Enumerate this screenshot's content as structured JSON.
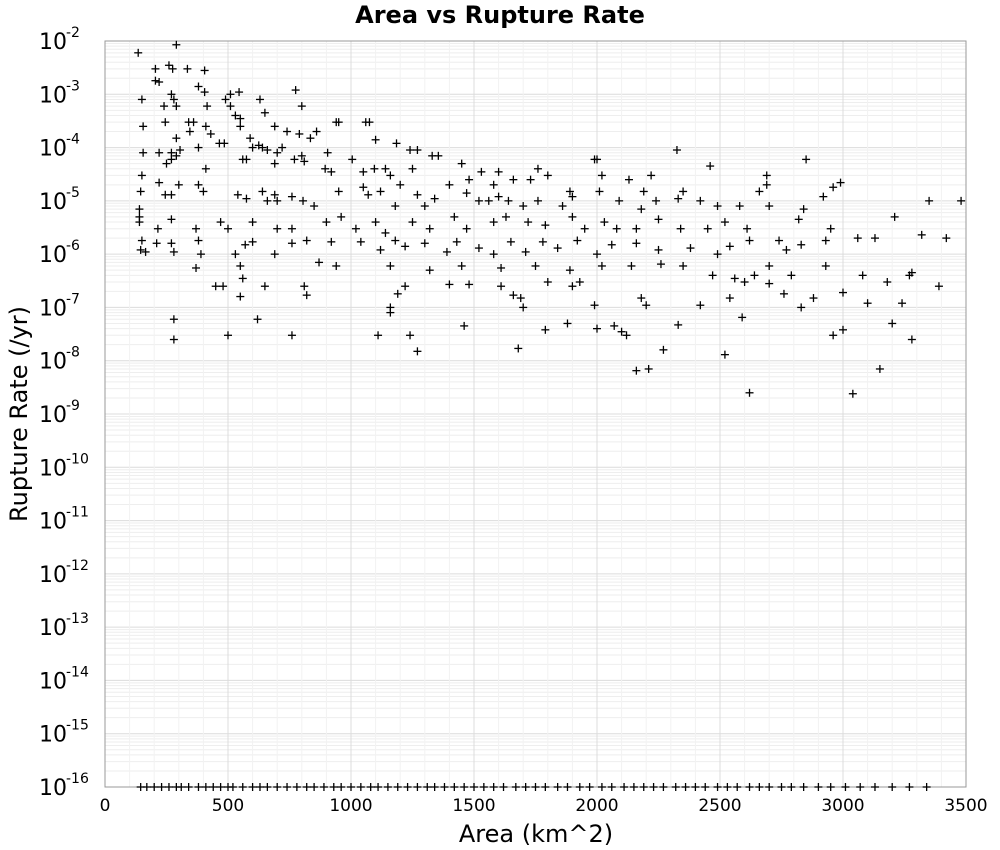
{
  "chart_data": {
    "type": "scatter",
    "title": "Area vs Rupture Rate",
    "xlabel": "Area (km^2)",
    "ylabel": "Rupture Rate (/yr)",
    "xlim": [
      0,
      3500
    ],
    "ylim": [
      1e-16,
      0.01
    ],
    "y_scale": "log",
    "grid": true,
    "marker": "plus",
    "marker_color": "#000000",
    "x_ticks": [
      0,
      500,
      1000,
      1500,
      2000,
      2500,
      3000,
      3500
    ],
    "y_ticks": [
      {
        "base": "10",
        "exp": "-2"
      },
      {
        "base": "10",
        "exp": "-3"
      },
      {
        "base": "10",
        "exp": "-4"
      },
      {
        "base": "10",
        "exp": "-5"
      },
      {
        "base": "10",
        "exp": "-6"
      },
      {
        "base": "10",
        "exp": "-7"
      },
      {
        "base": "10",
        "exp": "-8"
      },
      {
        "base": "10",
        "exp": "-9"
      },
      {
        "base": "10",
        "exp": "-10"
      },
      {
        "base": "10",
        "exp": "-11"
      },
      {
        "base": "10",
        "exp": "-12"
      },
      {
        "base": "10",
        "exp": "-13"
      },
      {
        "base": "10",
        "exp": "-14"
      },
      {
        "base": "10",
        "exp": "-15"
      },
      {
        "base": "10",
        "exp": "-16"
      }
    ],
    "points": [
      [
        135,
        0.006
      ],
      [
        290,
        0.0085
      ],
      [
        260,
        0.0035
      ],
      [
        275,
        0.003
      ],
      [
        205,
        0.003
      ],
      [
        335,
        0.003
      ],
      [
        405,
        0.0028
      ],
      [
        205,
        0.0018
      ],
      [
        220,
        0.0017
      ],
      [
        150,
        0.0008
      ],
      [
        270,
        0.001
      ],
      [
        280,
        0.0008
      ],
      [
        290,
        0.0006
      ],
      [
        240,
        0.0006
      ],
      [
        380,
        0.0014
      ],
      [
        405,
        0.0011
      ],
      [
        510,
        0.001
      ],
      [
        545,
        0.0011
      ],
      [
        490,
        0.0008
      ],
      [
        510,
        0.0006
      ],
      [
        415,
        0.0006
      ],
      [
        630,
        0.0008
      ],
      [
        775,
        0.0012
      ],
      [
        800,
        0.0006
      ],
      [
        530,
        0.0004
      ],
      [
        650,
        0.00045
      ],
      [
        410,
        0.00025
      ],
      [
        155,
        0.00025
      ],
      [
        245,
        0.0003
      ],
      [
        340,
        0.0003
      ],
      [
        360,
        0.0003
      ],
      [
        345,
        0.0002
      ],
      [
        430,
        0.00018
      ],
      [
        465,
        0.00012
      ],
      [
        485,
        0.00012
      ],
      [
        550,
        0.00025
      ],
      [
        550,
        0.00035
      ],
      [
        690,
        0.00025
      ],
      [
        740,
        0.0002
      ],
      [
        790,
        0.00018
      ],
      [
        835,
        0.00015
      ],
      [
        860,
        0.0002
      ],
      [
        940,
        0.0003
      ],
      [
        950,
        0.0003
      ],
      [
        1075,
        0.0003
      ],
      [
        1060,
        0.0003
      ],
      [
        1100,
        0.00014
      ],
      [
        590,
        0.00015
      ],
      [
        600,
        0.0001
      ],
      [
        625,
        0.00011
      ],
      [
        640,
        0.0001
      ],
      [
        155,
        8e-05
      ],
      [
        220,
        8e-05
      ],
      [
        270,
        8e-05
      ],
      [
        290,
        0.00015
      ],
      [
        305,
        9e-05
      ],
      [
        380,
        0.0001
      ],
      [
        660,
        9e-05
      ],
      [
        700,
        8e-05
      ],
      [
        720,
        0.0001
      ],
      [
        800,
        7e-05
      ],
      [
        905,
        8e-05
      ],
      [
        1005,
        6e-05
      ],
      [
        1185,
        0.00012
      ],
      [
        1240,
        9e-05
      ],
      [
        1270,
        9e-05
      ],
      [
        1330,
        7e-05
      ],
      [
        1355,
        7e-05
      ],
      [
        1450,
        5e-05
      ],
      [
        1600,
        3.5e-05
      ],
      [
        2000,
        6e-05
      ],
      [
        2325,
        9e-05
      ],
      [
        2460,
        4.5e-05
      ],
      [
        2850,
        6e-05
      ],
      [
        250,
        5e-05
      ],
      [
        270,
        6e-05
      ],
      [
        290,
        7e-05
      ],
      [
        410,
        4e-05
      ],
      [
        560,
        6e-05
      ],
      [
        575,
        6e-05
      ],
      [
        690,
        5e-05
      ],
      [
        770,
        6e-05
      ],
      [
        810,
        5.5e-05
      ],
      [
        895,
        4e-05
      ],
      [
        920,
        3.5e-05
      ],
      [
        1050,
        3.5e-05
      ],
      [
        1095,
        4e-05
      ],
      [
        1140,
        4e-05
      ],
      [
        1160,
        3e-05
      ],
      [
        1200,
        2e-05
      ],
      [
        1250,
        4e-05
      ],
      [
        1400,
        2e-05
      ],
      [
        1480,
        2.5e-05
      ],
      [
        1530,
        3.5e-05
      ],
      [
        1580,
        2e-05
      ],
      [
        1660,
        2.5e-05
      ],
      [
        1730,
        2.5e-05
      ],
      [
        1760,
        4e-05
      ],
      [
        1800,
        3e-05
      ],
      [
        1890,
        1.5e-05
      ],
      [
        1990,
        6e-05
      ],
      [
        2020,
        3e-05
      ],
      [
        2130,
        2.5e-05
      ],
      [
        2190,
        1.5e-05
      ],
      [
        2220,
        3e-05
      ],
      [
        2350,
        1.5e-05
      ],
      [
        2660,
        1.5e-05
      ],
      [
        2690,
        3e-05
      ],
      [
        2690,
        2e-05
      ],
      [
        2990,
        2.2e-05
      ],
      [
        2960,
        1.8e-05
      ],
      [
        3480,
        1e-05
      ],
      [
        3350,
        1e-05
      ],
      [
        150,
        3e-05
      ],
      [
        145,
        1.5e-05
      ],
      [
        140,
        7e-06
      ],
      [
        140,
        5e-06
      ],
      [
        220,
        2.2e-05
      ],
      [
        245,
        1.3e-05
      ],
      [
        270,
        1.3e-05
      ],
      [
        300,
        2e-05
      ],
      [
        400,
        1.5e-05
      ],
      [
        380,
        2e-05
      ],
      [
        540,
        1.3e-05
      ],
      [
        640,
        1.5e-05
      ],
      [
        575,
        1.1e-05
      ],
      [
        660,
        1e-05
      ],
      [
        690,
        1.3e-05
      ],
      [
        700,
        1e-05
      ],
      [
        760,
        1.2e-05
      ],
      [
        805,
        1e-05
      ],
      [
        850,
        8e-06
      ],
      [
        950,
        1.5e-05
      ],
      [
        1050,
        1.8e-05
      ],
      [
        1070,
        1.3e-05
      ],
      [
        1120,
        1.5e-05
      ],
      [
        1180,
        8e-06
      ],
      [
        1270,
        1.3e-05
      ],
      [
        1300,
        8e-06
      ],
      [
        1340,
        1.1e-05
      ],
      [
        1470,
        1.4e-05
      ],
      [
        1520,
        1e-05
      ],
      [
        1560,
        1e-05
      ],
      [
        1600,
        1.2e-05
      ],
      [
        1640,
        1e-05
      ],
      [
        1700,
        8e-06
      ],
      [
        1760,
        1e-05
      ],
      [
        1860,
        8e-06
      ],
      [
        1900,
        1.2e-05
      ],
      [
        2010,
        1.5e-05
      ],
      [
        2090,
        1e-05
      ],
      [
        2180,
        7e-06
      ],
      [
        2240,
        1e-05
      ],
      [
        2330,
        1.1e-05
      ],
      [
        2420,
        1e-05
      ],
      [
        2490,
        8e-06
      ],
      [
        2580,
        8e-06
      ],
      [
        2700,
        8e-06
      ],
      [
        2840,
        7e-06
      ],
      [
        2920,
        1.2e-05
      ],
      [
        3210,
        5e-06
      ],
      [
        140,
        4e-06
      ],
      [
        215,
        3e-06
      ],
      [
        270,
        4.5e-06
      ],
      [
        370,
        3e-06
      ],
      [
        470,
        4e-06
      ],
      [
        500,
        3e-06
      ],
      [
        600,
        4e-06
      ],
      [
        700,
        3e-06
      ],
      [
        760,
        3e-06
      ],
      [
        900,
        4e-06
      ],
      [
        960,
        5e-06
      ],
      [
        1020,
        3e-06
      ],
      [
        1100,
        4e-06
      ],
      [
        1140,
        2.5e-06
      ],
      [
        1250,
        4e-06
      ],
      [
        1320,
        3e-06
      ],
      [
        1420,
        5e-06
      ],
      [
        1470,
        3e-06
      ],
      [
        1580,
        4e-06
      ],
      [
        1630,
        5e-06
      ],
      [
        1720,
        4e-06
      ],
      [
        1790,
        3.5e-06
      ],
      [
        1900,
        5e-06
      ],
      [
        1950,
        3e-06
      ],
      [
        2030,
        4e-06
      ],
      [
        2080,
        3e-06
      ],
      [
        2160,
        3e-06
      ],
      [
        2250,
        4.5e-06
      ],
      [
        2340,
        3e-06
      ],
      [
        2450,
        3e-06
      ],
      [
        2520,
        4e-06
      ],
      [
        2610,
        3e-06
      ],
      [
        2820,
        4.5e-06
      ],
      [
        2950,
        3e-06
      ],
      [
        3060,
        2e-06
      ],
      [
        3130,
        2e-06
      ],
      [
        3320,
        2.3e-06
      ],
      [
        3420,
        2e-06
      ],
      [
        150,
        1.8e-06
      ],
      [
        145,
        1.2e-06
      ],
      [
        165,
        1.1e-06
      ],
      [
        210,
        1.6e-06
      ],
      [
        270,
        1.6e-06
      ],
      [
        280,
        1.1e-06
      ],
      [
        380,
        1.8e-06
      ],
      [
        390,
        1e-06
      ],
      [
        530,
        1e-06
      ],
      [
        570,
        1.5e-06
      ],
      [
        600,
        1.7e-06
      ],
      [
        690,
        1e-06
      ],
      [
        760,
        1.6e-06
      ],
      [
        820,
        1.8e-06
      ],
      [
        920,
        1.7e-06
      ],
      [
        1040,
        1.7e-06
      ],
      [
        1120,
        1.2e-06
      ],
      [
        1180,
        1.8e-06
      ],
      [
        1220,
        1.4e-06
      ],
      [
        1300,
        1.6e-06
      ],
      [
        1390,
        1.1e-06
      ],
      [
        1430,
        1.7e-06
      ],
      [
        1520,
        1.3e-06
      ],
      [
        1580,
        1e-06
      ],
      [
        1650,
        1.7e-06
      ],
      [
        1710,
        1.1e-06
      ],
      [
        1780,
        1.7e-06
      ],
      [
        1840,
        1.3e-06
      ],
      [
        1920,
        1.8e-06
      ],
      [
        2000,
        1e-06
      ],
      [
        2060,
        1.5e-06
      ],
      [
        2160,
        1.6e-06
      ],
      [
        2250,
        1.2e-06
      ],
      [
        2380,
        1.3e-06
      ],
      [
        2490,
        1e-06
      ],
      [
        2540,
        1.4e-06
      ],
      [
        2620,
        1.8e-06
      ],
      [
        2740,
        1.8e-06
      ],
      [
        2830,
        1.5e-06
      ],
      [
        2930,
        1.8e-06
      ],
      [
        2770,
        1.2e-06
      ],
      [
        550,
        6e-07
      ],
      [
        370,
        5.5e-07
      ],
      [
        870,
        7e-07
      ],
      [
        940,
        6e-07
      ],
      [
        1160,
        6e-07
      ],
      [
        1320,
        5e-07
      ],
      [
        1450,
        6e-07
      ],
      [
        1610,
        5.5e-07
      ],
      [
        1750,
        6e-07
      ],
      [
        1890,
        5e-07
      ],
      [
        2020,
        6e-07
      ],
      [
        2140,
        6e-07
      ],
      [
        2260,
        6.5e-07
      ],
      [
        2350,
        6e-07
      ],
      [
        2470,
        4e-07
      ],
      [
        2560,
        3.5e-07
      ],
      [
        2640,
        4e-07
      ],
      [
        2700,
        6e-07
      ],
      [
        2790,
        4e-07
      ],
      [
        2930,
        6e-07
      ],
      [
        3080,
        4e-07
      ],
      [
        3180,
        3e-07
      ],
      [
        3270,
        4e-07
      ],
      [
        3280,
        4.5e-07
      ],
      [
        450,
        2.5e-07
      ],
      [
        480,
        2.5e-07
      ],
      [
        560,
        3.5e-07
      ],
      [
        650,
        2.5e-07
      ],
      [
        810,
        2.5e-07
      ],
      [
        1190,
        1.8e-07
      ],
      [
        1220,
        2.5e-07
      ],
      [
        1400,
        2.7e-07
      ],
      [
        1480,
        2.7e-07
      ],
      [
        1610,
        2.5e-07
      ],
      [
        1660,
        1.7e-07
      ],
      [
        1690,
        1.5e-07
      ],
      [
        1800,
        3e-07
      ],
      [
        1900,
        2.5e-07
      ],
      [
        1930,
        3e-07
      ],
      [
        2180,
        1.5e-07
      ],
      [
        2200,
        1.1e-07
      ],
      [
        2420,
        1.1e-07
      ],
      [
        2540,
        1.5e-07
      ],
      [
        2600,
        3e-07
      ],
      [
        2700,
        2.8e-07
      ],
      [
        2760,
        1.8e-07
      ],
      [
        2880,
        1.5e-07
      ],
      [
        3000,
        1.9e-07
      ],
      [
        3100,
        1.2e-07
      ],
      [
        3240,
        1.2e-07
      ],
      [
        3390,
        2.5e-07
      ],
      [
        2830,
        1e-07
      ],
      [
        550,
        1.6e-07
      ],
      [
        820,
        1.7e-07
      ],
      [
        1160,
        8e-08
      ],
      [
        1160,
        1e-07
      ],
      [
        1700,
        1e-07
      ],
      [
        1990,
        1.1e-07
      ],
      [
        1790,
        3.8e-08
      ],
      [
        2070,
        4.5e-08
      ],
      [
        2100,
        3.5e-08
      ],
      [
        2330,
        4.7e-08
      ],
      [
        2590,
        6.5e-08
      ],
      [
        3000,
        3.8e-08
      ],
      [
        3200,
        5e-08
      ],
      [
        280,
        6e-08
      ],
      [
        620,
        6e-08
      ],
      [
        1460,
        4.5e-08
      ],
      [
        1880,
        5e-08
      ],
      [
        2000,
        4e-08
      ],
      [
        280,
        2.5e-08
      ],
      [
        500,
        3e-08
      ],
      [
        760,
        3e-08
      ],
      [
        1110,
        3e-08
      ],
      [
        1240,
        3e-08
      ],
      [
        2120,
        3e-08
      ],
      [
        2960,
        3e-08
      ],
      [
        3280,
        2.5e-08
      ],
      [
        1270,
        1.5e-08
      ],
      [
        1680,
        1.7e-08
      ],
      [
        2270,
        1.6e-08
      ],
      [
        2520,
        1.3e-08
      ],
      [
        2160,
        6.5e-09
      ],
      [
        2210,
        7e-09
      ],
      [
        3150,
        7e-09
      ],
      [
        2620,
        2.5e-09
      ],
      [
        3040,
        2.4e-09
      ],
      [
        145,
        1e-16
      ],
      [
        170,
        1e-16
      ],
      [
        200,
        1e-16
      ],
      [
        230,
        1e-16
      ],
      [
        260,
        1e-16
      ],
      [
        290,
        1e-16
      ],
      [
        310,
        1e-16
      ],
      [
        340,
        1e-16
      ],
      [
        380,
        1e-16
      ],
      [
        410,
        1e-16
      ],
      [
        440,
        1e-16
      ],
      [
        470,
        1e-16
      ],
      [
        500,
        1e-16
      ],
      [
        520,
        1e-16
      ],
      [
        560,
        1e-16
      ],
      [
        600,
        1e-16
      ],
      [
        630,
        1e-16
      ],
      [
        660,
        1e-16
      ],
      [
        700,
        1e-16
      ],
      [
        740,
        1e-16
      ],
      [
        780,
        1e-16
      ],
      [
        820,
        1e-16
      ],
      [
        850,
        1e-16
      ],
      [
        890,
        1e-16
      ],
      [
        930,
        1e-16
      ],
      [
        960,
        1e-16
      ],
      [
        1000,
        1e-16
      ],
      [
        1040,
        1e-16
      ],
      [
        1080,
        1e-16
      ],
      [
        1110,
        1e-16
      ],
      [
        1150,
        1e-16
      ],
      [
        1190,
        1e-16
      ],
      [
        1230,
        1e-16
      ],
      [
        1270,
        1e-16
      ],
      [
        1310,
        1e-16
      ],
      [
        1340,
        1e-16
      ],
      [
        1380,
        1e-16
      ],
      [
        1420,
        1e-16
      ],
      [
        1460,
        1e-16
      ],
      [
        1500,
        1e-16
      ],
      [
        1540,
        1e-16
      ],
      [
        1580,
        1e-16
      ],
      [
        1620,
        1e-16
      ],
      [
        1670,
        1e-16
      ],
      [
        1710,
        1e-16
      ],
      [
        1750,
        1e-16
      ],
      [
        1790,
        1e-16
      ],
      [
        1840,
        1e-16
      ],
      [
        1880,
        1e-16
      ],
      [
        1930,
        1e-16
      ],
      [
        1970,
        1e-16
      ],
      [
        2020,
        1e-16
      ],
      [
        2060,
        1e-16
      ],
      [
        2110,
        1e-16
      ],
      [
        2150,
        1e-16
      ],
      [
        2190,
        1e-16
      ],
      [
        2230,
        1e-16
      ],
      [
        2270,
        1e-16
      ],
      [
        2320,
        1e-16
      ],
      [
        2360,
        1e-16
      ],
      [
        2400,
        1e-16
      ],
      [
        2440,
        1e-16
      ],
      [
        2490,
        1e-16
      ],
      [
        2530,
        1e-16
      ],
      [
        2570,
        1e-16
      ],
      [
        2620,
        1e-16
      ],
      [
        2660,
        1e-16
      ],
      [
        2700,
        1e-16
      ],
      [
        2750,
        1e-16
      ],
      [
        2790,
        1e-16
      ],
      [
        2840,
        1e-16
      ],
      [
        2900,
        1e-16
      ],
      [
        2950,
        1e-16
      ],
      [
        3010,
        1e-16
      ],
      [
        3070,
        1e-16
      ],
      [
        3130,
        1e-16
      ],
      [
        3200,
        1e-16
      ],
      [
        3270,
        1e-16
      ],
      [
        3340,
        1e-16
      ]
    ]
  }
}
